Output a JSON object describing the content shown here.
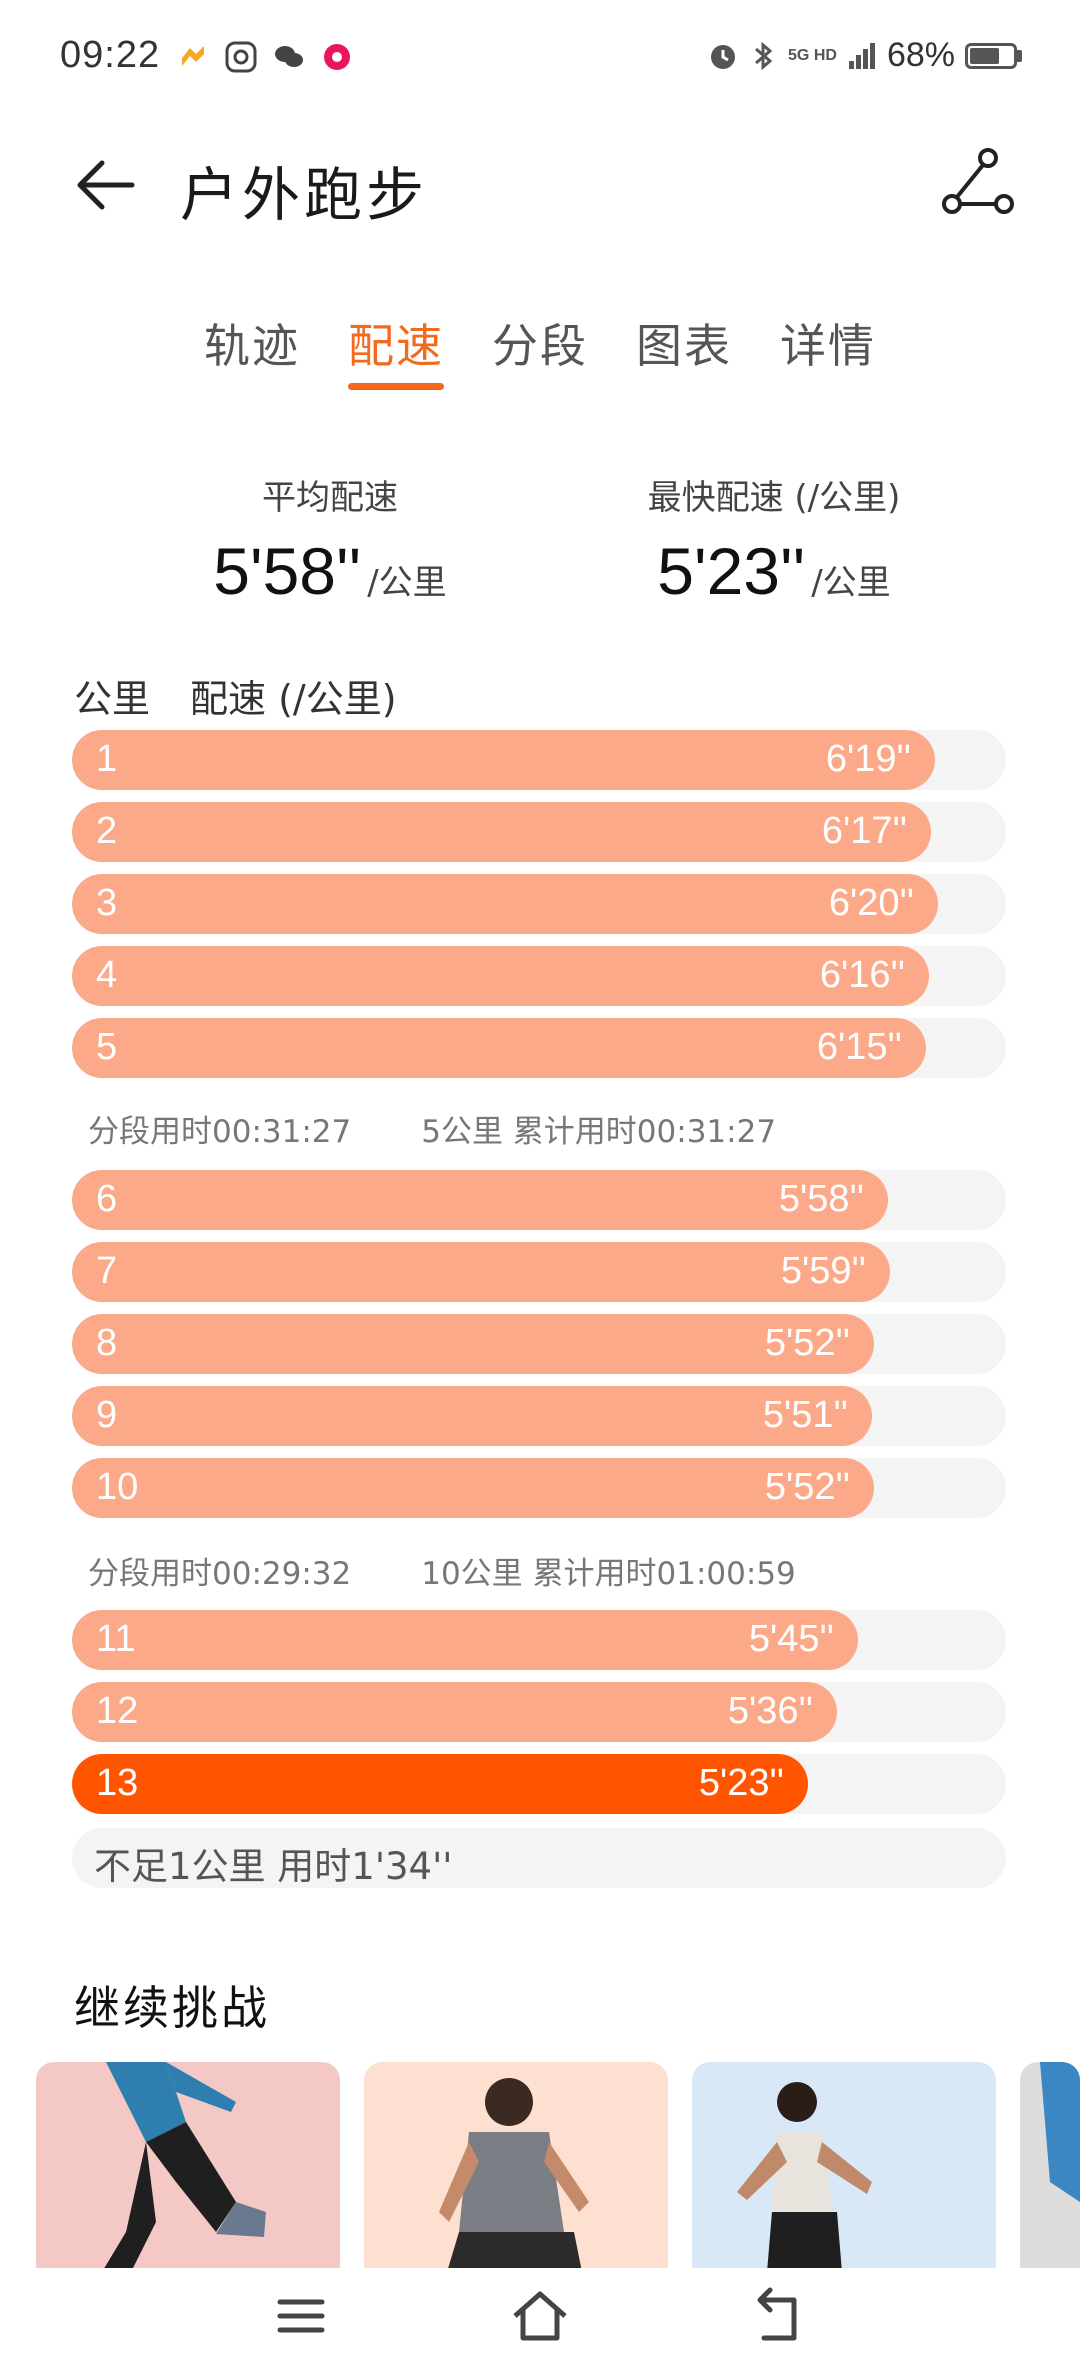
{
  "status_bar": {
    "time": "09:22",
    "network": "5G HD",
    "battery_percent_text": "68%",
    "battery_level": 0.68
  },
  "header": {
    "title": "户外跑步"
  },
  "tabs": [
    {
      "label": "轨迹",
      "active": false
    },
    {
      "label": "配速",
      "active": true
    },
    {
      "label": "分段",
      "active": false
    },
    {
      "label": "图表",
      "active": false
    },
    {
      "label": "详情",
      "active": false
    }
  ],
  "summary": {
    "avg_label": "平均配速",
    "avg_value": "5'58''",
    "avg_unit": "/公里",
    "fastest_label": "最快配速 (/公里)",
    "fastest_value": "5'23''",
    "fastest_unit": "/公里"
  },
  "list_header": {
    "km_label": "公里",
    "pace_label": "配速 (/公里)"
  },
  "paces": [
    {
      "km": "1",
      "pace": "6'19''",
      "seconds": 379
    },
    {
      "km": "2",
      "pace": "6'17''",
      "seconds": 377
    },
    {
      "km": "3",
      "pace": "6'20''",
      "seconds": 380
    },
    {
      "km": "4",
      "pace": "6'16''",
      "seconds": 376
    },
    {
      "km": "5",
      "pace": "6'15''",
      "seconds": 375
    },
    {
      "km": "6",
      "pace": "5'58''",
      "seconds": 358
    },
    {
      "km": "7",
      "pace": "5'59''",
      "seconds": 359
    },
    {
      "km": "8",
      "pace": "5'52''",
      "seconds": 352
    },
    {
      "km": "9",
      "pace": "5'51''",
      "seconds": 351
    },
    {
      "km": "10",
      "pace": "5'52''",
      "seconds": 352
    },
    {
      "km": "11",
      "pace": "5'45''",
      "seconds": 345
    },
    {
      "km": "12",
      "pace": "5'36''",
      "seconds": 336
    },
    {
      "km": "13",
      "pace": "5'23''",
      "seconds": 323,
      "fastest": true
    }
  ],
  "splits": [
    {
      "segment_time": "分段用时00:31:27",
      "cumulative": "5公里 累计用时00:31:27"
    },
    {
      "segment_time": "分段用时00:29:32",
      "cumulative": "10公里 累计用时01:00:59"
    }
  ],
  "remainder": "不足1公里 用时1'34''",
  "challenge": {
    "title": "继续挑战"
  },
  "colors": {
    "accent": "#f36a1d",
    "bar": "#fca98a",
    "bar_fastest": "#ff5500",
    "track": "#f4f4f4"
  }
}
